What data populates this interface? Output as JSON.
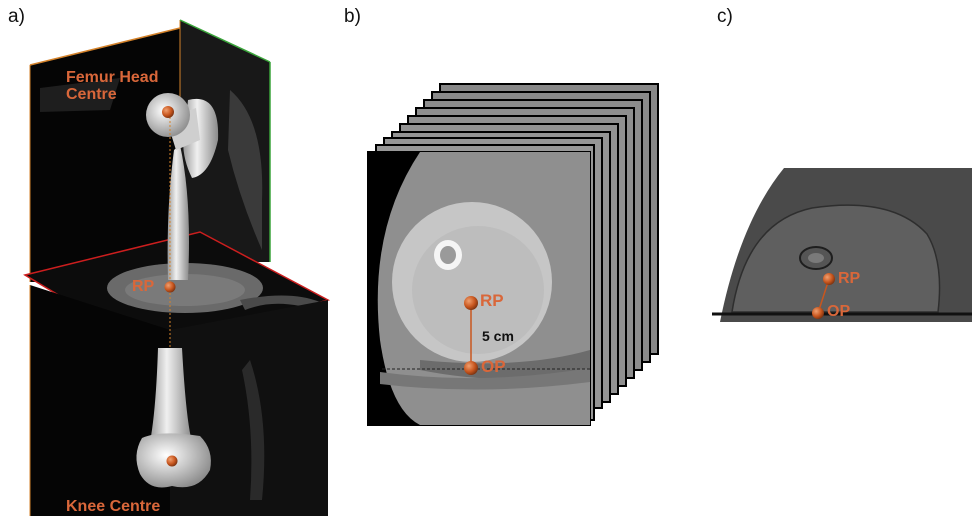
{
  "panels": {
    "a": {
      "label": "a)",
      "femur_head": "Femur Head\nCentre",
      "rp": "RP",
      "knee": "Knee Centre"
    },
    "b": {
      "label": "b)",
      "rp": "RP",
      "distance": "5 cm",
      "op": "OP"
    },
    "c": {
      "label": "c)",
      "rp": "RP",
      "op": "OP"
    }
  },
  "colors": {
    "accent": "#d9673a",
    "marker": "#c8561e",
    "frontal_plane_edge": "#d4822a",
    "sagittal_plane_edge": "#3aa43a",
    "axial_plane_edge": "#cc1e1e"
  }
}
